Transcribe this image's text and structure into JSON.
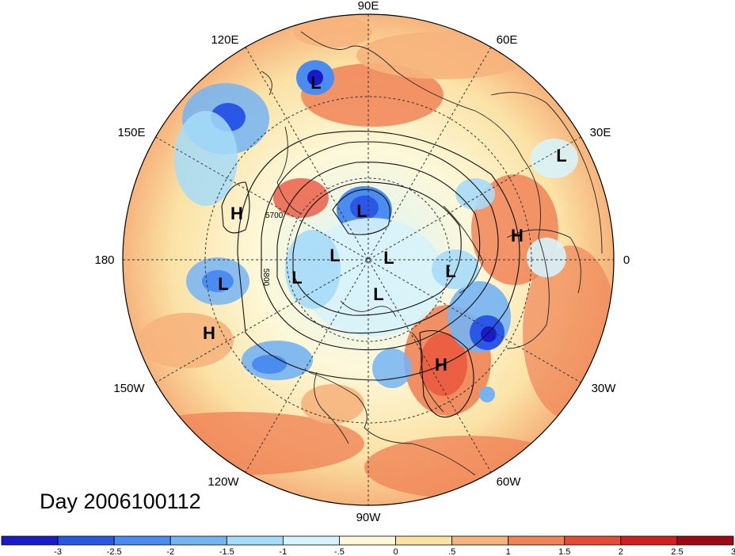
{
  "title": "Day 2006100112",
  "longitude_labels": {
    "north": "90E",
    "ne1": "60E",
    "ne2": "30E",
    "east": "0",
    "se1": "30W",
    "se2": "60W",
    "south": "90W",
    "sw1": "120W",
    "sw2": "150W",
    "west": "180",
    "nw1": "150E",
    "nw2": "120E"
  },
  "pressure_centers": [
    {
      "type": "L",
      "name": "low-center-siberia"
    },
    {
      "type": "H",
      "name": "high-center-bering"
    },
    {
      "type": "L",
      "name": "low-center-kara"
    },
    {
      "type": "L",
      "name": "low-center-arctic-1"
    },
    {
      "type": "L",
      "name": "low-center-arctic-2"
    },
    {
      "type": "L",
      "name": "low-center-arctic-3"
    },
    {
      "type": "L",
      "name": "low-center-arctic-4"
    },
    {
      "type": "L",
      "name": "low-center-aleutian"
    },
    {
      "type": "H",
      "name": "high-center-pacific"
    },
    {
      "type": "L",
      "name": "low-center-norway"
    },
    {
      "type": "H",
      "name": "high-center-europe"
    },
    {
      "type": "H",
      "name": "high-center-atlantic"
    },
    {
      "type": "L",
      "name": "low-center-mideast"
    }
  ],
  "contour_labels": [
    "5700",
    "5800"
  ],
  "colorbar": {
    "ticks": [
      "-3",
      "-2.5",
      "-2",
      "-1.5",
      "-1",
      "-.5",
      "0",
      ".5",
      "1",
      "1.5",
      "2",
      "2.5",
      "3"
    ],
    "colors": [
      "#1a1acd",
      "#2b57e6",
      "#4a8cef",
      "#74b4f3",
      "#a6dcf8",
      "#d7f3fb",
      "#fdf8d8",
      "#fbe2a6",
      "#f6b47c",
      "#f08457",
      "#e84b35",
      "#d41f22",
      "#9e0a14"
    ]
  }
}
